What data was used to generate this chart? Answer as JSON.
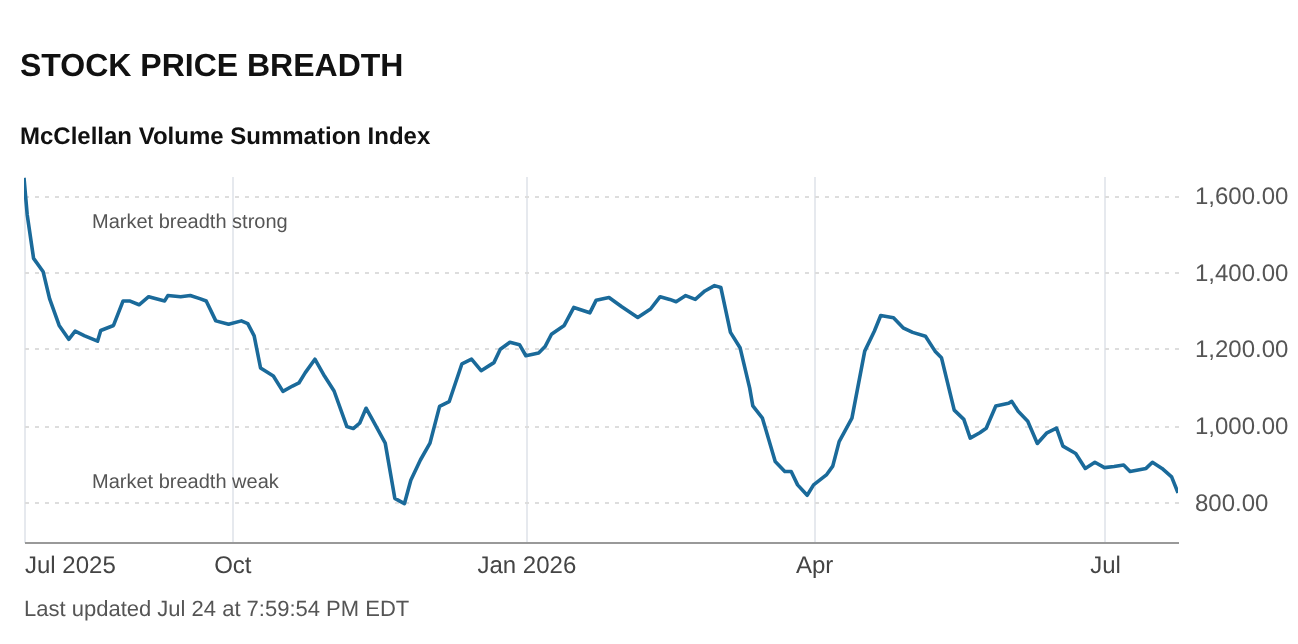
{
  "chart_data": {
    "type": "line",
    "title": "STOCK PRICE BREADTH",
    "subtitle": "McClellan Volume Summation Index",
    "annotations": [
      "Market breadth strong",
      "Market breadth weak",
      "Last updated Jul 24 at 7:59:54 PM EDT"
    ],
    "x": [
      "2025-07-28",
      "2025-07-29",
      "2025-07-31",
      "2025-08-03",
      "2025-08-05",
      "2025-08-08",
      "2025-08-11",
      "2025-08-13",
      "2025-08-16",
      "2025-08-20",
      "2025-08-21",
      "2025-08-25",
      "2025-08-28",
      "2025-08-30",
      "2025-09-02",
      "2025-09-05",
      "2025-09-10",
      "2025-09-11",
      "2025-09-15",
      "2025-09-18",
      "2025-09-21",
      "2025-09-23",
      "2025-09-26",
      "2025-09-30",
      "2025-10-04",
      "2025-10-06",
      "2025-10-08",
      "2025-10-10",
      "2025-10-14",
      "2025-10-17",
      "2025-10-20",
      "2025-10-22",
      "2025-10-24",
      "2025-10-27",
      "2025-10-30",
      "2025-11-02",
      "2025-11-06",
      "2025-11-08",
      "2025-11-10",
      "2025-11-12",
      "2025-11-14",
      "2025-11-18",
      "2025-11-21",
      "2025-11-24",
      "2025-11-26",
      "2025-11-29",
      "2025-12-02",
      "2025-12-05",
      "2025-12-08",
      "2025-12-12",
      "2025-12-15",
      "2025-12-18",
      "2025-12-22",
      "2025-12-24",
      "2025-12-27",
      "2025-12-30",
      "2026-01-01",
      "2026-01-05",
      "2026-01-07",
      "2026-01-09",
      "2026-01-13",
      "2026-01-16",
      "2026-01-21",
      "2026-01-23",
      "2026-01-27",
      "2026-01-31",
      "2026-02-05",
      "2026-02-09",
      "2026-02-12",
      "2026-02-15",
      "2026-02-17",
      "2026-02-20",
      "2026-02-23",
      "2026-02-26",
      "2026-03-01",
      "2026-03-03",
      "2026-03-06",
      "2026-03-09",
      "2026-03-12",
      "2026-03-13",
      "2026-03-16",
      "2026-03-20",
      "2026-03-23",
      "2026-03-25",
      "2026-03-27",
      "2026-03-30",
      "2026-04-01",
      "2026-04-05",
      "2026-04-07",
      "2026-04-09",
      "2026-04-13",
      "2026-04-17",
      "2026-04-20",
      "2026-04-22",
      "2026-04-26",
      "2026-04-29",
      "2026-05-02",
      "2026-05-06",
      "2026-05-09",
      "2026-05-11",
      "2026-05-15",
      "2026-05-18",
      "2026-05-20",
      "2026-05-23",
      "2026-05-25",
      "2026-05-28",
      "2026-06-01",
      "2026-06-02",
      "2026-06-04",
      "2026-06-07",
      "2026-06-10",
      "2026-06-13",
      "2026-06-16",
      "2026-06-18",
      "2026-06-22",
      "2026-06-25",
      "2026-06-28",
      "2026-07-01",
      "2026-07-04",
      "2026-07-07",
      "2026-07-09",
      "2026-07-14",
      "2026-07-16",
      "2026-07-19",
      "2026-07-22",
      "2026-07-24"
    ],
    "series": [
      {
        "color": "#1a6a9a",
        "values": [
          1645,
          1549,
          1435,
          1400,
          1330,
          1260,
          1224,
          1245,
          1233,
          1219,
          1247,
          1260,
          1324,
          1324,
          1314,
          1335,
          1324,
          1338,
          1335,
          1338,
          1330,
          1324,
          1272,
          1263,
          1272,
          1265,
          1233,
          1149,
          1128,
          1088,
          1102,
          1110,
          1137,
          1172,
          1128,
          1089,
          996,
          991,
          1005,
          1044,
          1014,
          953,
          809,
          795,
          856,
          909,
          953,
          1049,
          1061,
          1160,
          1172,
          1142,
          1163,
          1198,
          1216,
          1210,
          1181,
          1188,
          1205,
          1237,
          1260,
          1307,
          1293,
          1326,
          1333,
          1309,
          1281,
          1303,
          1335,
          1328,
          1322,
          1338,
          1328,
          1350,
          1364,
          1359,
          1242,
          1202,
          1097,
          1050,
          1018,
          905,
          879,
          879,
          844,
          817,
          844,
          870,
          893,
          957,
          1018,
          1193,
          1245,
          1286,
          1280,
          1254,
          1242,
          1232,
          1193,
          1176,
          1039,
          1015,
          966,
          980,
          992,
          1050,
          1057,
          1062,
          1036,
          1010,
          952,
          980,
          992,
          945,
          926,
          887,
          903,
          889,
          892,
          896,
          879,
          887,
          903,
          887,
          865,
          823
        ]
      }
    ],
    "xlim": [
      "2025-07-28",
      "2026-07-24"
    ],
    "xticks": [
      {
        "value": "2025-07-28",
        "label": "Jul 2025"
      },
      {
        "value": "2025-10-01",
        "label": "Oct"
      },
      {
        "value": "2026-01-01",
        "label": "Jan 2026"
      },
      {
        "value": "2026-04-01",
        "label": "Apr"
      },
      {
        "value": "2026-07-01",
        "label": "Jul"
      }
    ],
    "ylim": [
      695,
      1650
    ],
    "yticks": [
      {
        "value": 800,
        "label": "800.00"
      },
      {
        "value": 1000,
        "label": "1,000.00"
      },
      {
        "value": 1200,
        "label": "1,200.00"
      },
      {
        "value": 1400,
        "label": "1,400.00"
      },
      {
        "value": 1600,
        "label": "1,600.00"
      }
    ],
    "grid": true,
    "marker": "none",
    "line_style": "solid"
  }
}
